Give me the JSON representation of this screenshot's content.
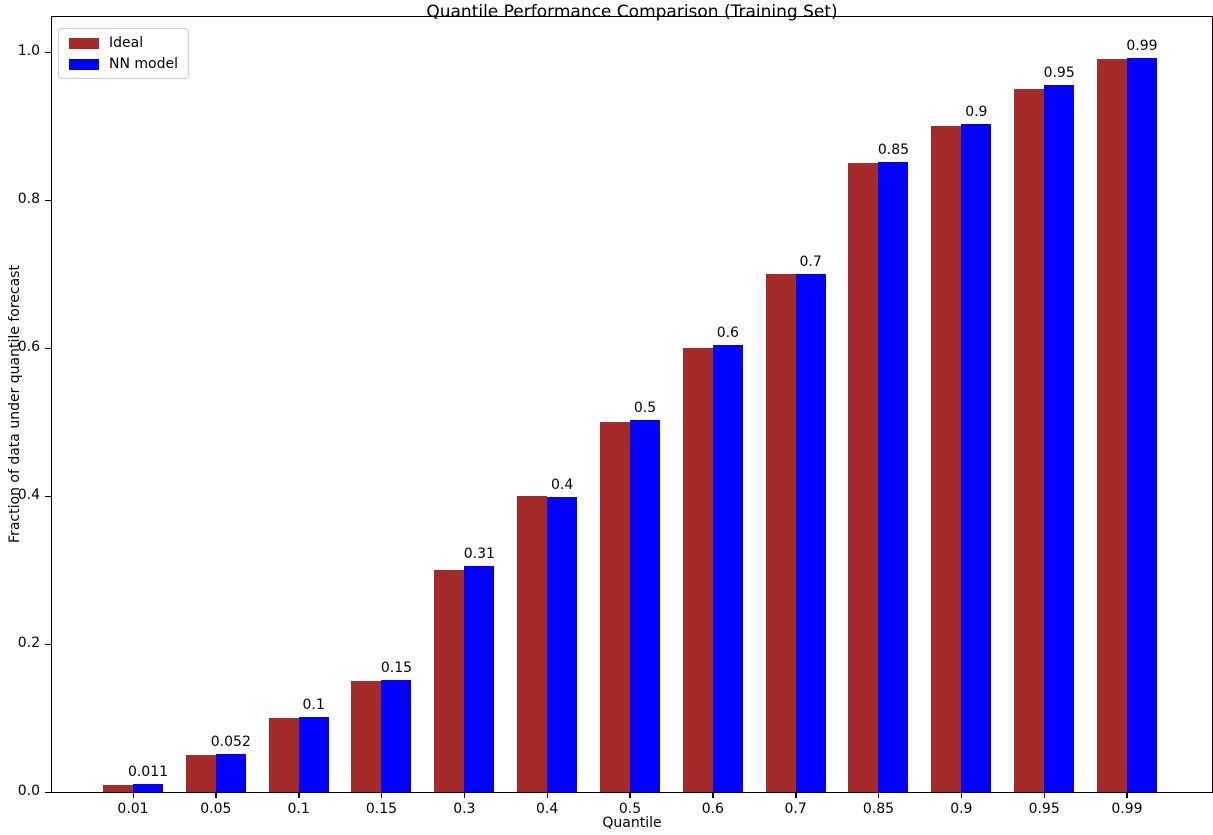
{
  "chart_data": {
    "type": "bar",
    "title": "Quantile Performance Comparison (Training Set)",
    "xlabel": "Quantile",
    "ylabel": "Fraction of data under quantile forecast",
    "categories": [
      "0.01",
      "0.05",
      "0.1",
      "0.15",
      "0.3",
      "0.4",
      "0.5",
      "0.6",
      "0.7",
      "0.85",
      "0.9",
      "0.95",
      "0.99"
    ],
    "series": [
      {
        "name": "Ideal",
        "color": "#a52a2a",
        "values": [
          0.01,
          0.05,
          0.1,
          0.15,
          0.3,
          0.4,
          0.5,
          0.6,
          0.7,
          0.85,
          0.9,
          0.95,
          0.99
        ]
      },
      {
        "name": "NN model",
        "color": "#0000ff",
        "values": [
          0.011,
          0.052,
          0.101,
          0.151,
          0.305,
          0.399,
          0.503,
          0.604,
          0.7,
          0.851,
          0.903,
          0.955,
          0.992
        ]
      }
    ],
    "bar_labels": [
      "0.011",
      "0.052",
      "0.1",
      "0.15",
      "0.31",
      "0.4",
      "0.5",
      "0.6",
      "0.7",
      "0.85",
      "0.9",
      "0.95",
      "0.99"
    ],
    "yticks": [
      0.0,
      0.2,
      0.4,
      0.6,
      0.8,
      1.0
    ],
    "ytick_labels": [
      "0.0",
      "0.2",
      "0.4",
      "0.6",
      "0.8",
      "1.0"
    ],
    "ylim": [
      0,
      1.05
    ],
    "grid": false,
    "legend_position": "upper left",
    "axis_color": "#000000",
    "text_color": "#000000"
  }
}
